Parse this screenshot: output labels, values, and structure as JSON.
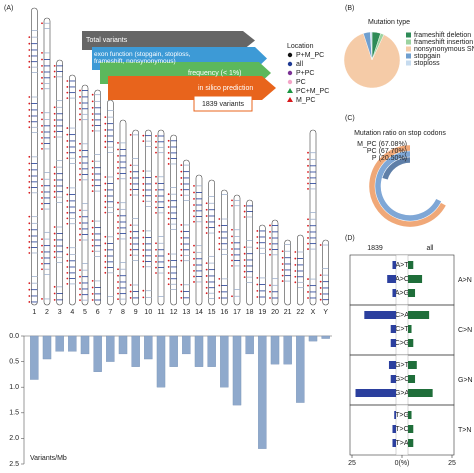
{
  "panel_labels": [
    "(A)",
    "(B)",
    "(C)",
    "(D)"
  ],
  "funnel": [
    "Total variants",
    "exon function (stopgain, stoploss, frameshift, nonsynonymous)",
    "frequency (< 1%)",
    "in silico prediction",
    "1839 variants"
  ],
  "location_legend": {
    "title": "Location",
    "items": [
      {
        "name": "P+M_PC",
        "color": "#111111",
        "shape": "circle"
      },
      {
        "name": "all",
        "color": "#1f3a93",
        "shape": "circle"
      },
      {
        "name": "P+PC",
        "color": "#7b3294",
        "shape": "circle"
      },
      {
        "name": "PC",
        "color": "#f4a6c8",
        "shape": "circle"
      },
      {
        "name": "PC+M_PC",
        "color": "#1a9641",
        "shape": "triangle"
      },
      {
        "name": "M_PC",
        "color": "#d7191c",
        "shape": "triangle"
      }
    ]
  },
  "chart_data": [
    {
      "type": "bar",
      "y_label": "Variants/Mb",
      "categories": [
        "1",
        "2",
        "3",
        "4",
        "5",
        "6",
        "7",
        "8",
        "9",
        "10",
        "11",
        "12",
        "13",
        "14",
        "15",
        "16",
        "17",
        "18",
        "19",
        "20",
        "21",
        "22",
        "X",
        "Y"
      ],
      "values": [
        0.85,
        0.45,
        0.3,
        0.3,
        0.35,
        0.7,
        0.5,
        0.35,
        0.6,
        0.45,
        1.0,
        0.6,
        0.35,
        0.6,
        0.6,
        1.0,
        1.35,
        0.35,
        2.2,
        0.55,
        0.55,
        1.3,
        0.1,
        0.05
      ],
      "color": "#8fa9cc",
      "y_inverted": true,
      "ylim": [
        0,
        2.5
      ],
      "yticks": [
        {
          "value": 0,
          "label": "0.0"
        },
        {
          "value": 0.5,
          "label": "0.5"
        },
        {
          "value": 1,
          "label": "1.0"
        },
        {
          "value": 1.5,
          "label": "1.5"
        },
        {
          "value": 2,
          "label": "2.0"
        },
        {
          "value": 2.5,
          "label": "2.5"
        }
      ]
    },
    {
      "type": "pie",
      "title": "Mutation type",
      "categories": [
        "frameshift deletion",
        "frameshift insertion",
        "nonsynonymous SNV",
        "stopgain",
        "stoploss"
      ],
      "values": [
        5,
        2,
        88,
        4,
        1
      ],
      "colors": [
        "#2e8b57",
        "#9bd3a0",
        "#f5cba7",
        "#6f9fcf",
        "#c6dbef"
      ]
    },
    {
      "type": "radial_bar",
      "title": "Mutation ratio on stop codons",
      "categories": [
        "M_PC",
        "PC",
        "P"
      ],
      "values": [
        67.08,
        67.7,
        20.5
      ],
      "value_labels": [
        "(67.08%)",
        "(67.70%)",
        "(20.50%)"
      ],
      "colors": [
        "#f0a878",
        "#7fa7d6",
        "#5f7fa8"
      ]
    },
    {
      "type": "diverging_bar",
      "groups": [
        {
          "name": "A>N",
          "categories": [
            "A>T",
            "A>C",
            "A>G"
          ]
        },
        {
          "name": "C>N",
          "categories": [
            "C>A",
            "C>T",
            "C>G"
          ]
        },
        {
          "name": "G>N",
          "categories": [
            "G>T",
            "G>C",
            "G>A"
          ]
        },
        {
          "name": "T>N",
          "categories": [
            "T>G",
            "T>C",
            "T>A"
          ]
        }
      ],
      "series": [
        {
          "name": "1839",
          "color": "#2b3f9e",
          "values": [
            2,
            5,
            2,
            18,
            3,
            3,
            4,
            3,
            23,
            1,
            2,
            2
          ]
        },
        {
          "name": "all",
          "color": "#1f6e3a",
          "values": [
            3,
            8,
            4,
            12,
            2,
            3,
            5,
            4,
            14,
            2,
            3,
            3
          ]
        }
      ],
      "xlim": [
        0,
        25
      ],
      "xticks": [
        {
          "value": 0,
          "label": "0(%)"
        },
        25
      ]
    }
  ]
}
